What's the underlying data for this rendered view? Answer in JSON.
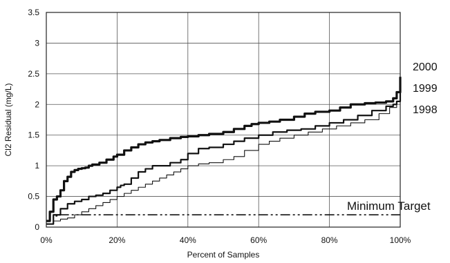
{
  "chart_data": {
    "type": "line",
    "title": "",
    "xlabel": "Percent of Samples",
    "ylabel": "Cl2 Residual (mg/L)",
    "xlim": [
      0,
      100
    ],
    "ylim": [
      0,
      3.5
    ],
    "x_ticks": [
      0,
      20,
      40,
      60,
      80,
      100
    ],
    "x_tick_labels": [
      "0%",
      "20%",
      "40%",
      "60%",
      "80%",
      "100%"
    ],
    "y_ticks": [
      0,
      0.5,
      1,
      1.5,
      2,
      2.5,
      3,
      3.5
    ],
    "y_tick_labels": [
      "0",
      "0.5",
      "1",
      "1.5",
      "2",
      "2.5",
      "3",
      "3.5"
    ],
    "grid": true,
    "series": [
      {
        "name": "2000",
        "color": "#111111",
        "style": "thick",
        "x": [
          0,
          1,
          2,
          3,
          4,
          5,
          6,
          7,
          8,
          9,
          10,
          11,
          12,
          13,
          15,
          17,
          19,
          20,
          22,
          24,
          26,
          28,
          30,
          32,
          35,
          38,
          40,
          43,
          46,
          50,
          53,
          56,
          58,
          60,
          63,
          66,
          70,
          73,
          76,
          80,
          83,
          86,
          90,
          93,
          96,
          98,
          99,
          100
        ],
        "y": [
          0.1,
          0.25,
          0.45,
          0.5,
          0.6,
          0.75,
          0.82,
          0.9,
          0.93,
          0.95,
          0.96,
          0.97,
          1.0,
          1.02,
          1.05,
          1.1,
          1.15,
          1.18,
          1.25,
          1.3,
          1.35,
          1.38,
          1.4,
          1.42,
          1.45,
          1.47,
          1.48,
          1.5,
          1.52,
          1.55,
          1.6,
          1.65,
          1.68,
          1.7,
          1.72,
          1.75,
          1.8,
          1.85,
          1.88,
          1.9,
          1.95,
          2.0,
          2.02,
          2.03,
          2.05,
          2.1,
          2.2,
          2.45
        ]
      },
      {
        "name": "1999",
        "color": "#111111",
        "style": "medium",
        "x": [
          0,
          2,
          4,
          6,
          8,
          10,
          12,
          14,
          16,
          18,
          20,
          21,
          22,
          24,
          26,
          28,
          30,
          32,
          35,
          38,
          40,
          43,
          46,
          50,
          53,
          56,
          60,
          64,
          68,
          72,
          76,
          80,
          84,
          88,
          92,
          96,
          98,
          99,
          100
        ],
        "y": [
          0.05,
          0.2,
          0.3,
          0.38,
          0.42,
          0.45,
          0.5,
          0.52,
          0.55,
          0.6,
          0.65,
          0.68,
          0.7,
          0.8,
          0.9,
          0.95,
          1.0,
          1.0,
          1.05,
          1.1,
          1.2,
          1.28,
          1.3,
          1.35,
          1.4,
          1.45,
          1.5,
          1.55,
          1.58,
          1.6,
          1.65,
          1.7,
          1.75,
          1.82,
          1.9,
          1.97,
          2.0,
          2.05,
          2.3
        ]
      },
      {
        "name": "1998",
        "color": "#111111",
        "style": "thin",
        "x": [
          0,
          2,
          4,
          6,
          8,
          10,
          12,
          14,
          16,
          18,
          20,
          22,
          24,
          26,
          28,
          30,
          32,
          34,
          36,
          38,
          40,
          43,
          46,
          50,
          53,
          56,
          60,
          63,
          66,
          70,
          74,
          78,
          82,
          86,
          90,
          94,
          97,
          99,
          100
        ],
        "y": [
          0.05,
          0.1,
          0.13,
          0.15,
          0.2,
          0.25,
          0.3,
          0.35,
          0.4,
          0.45,
          0.5,
          0.55,
          0.6,
          0.65,
          0.7,
          0.75,
          0.8,
          0.85,
          0.9,
          0.95,
          1.0,
          1.03,
          1.05,
          1.1,
          1.15,
          1.25,
          1.35,
          1.4,
          1.45,
          1.5,
          1.55,
          1.6,
          1.65,
          1.7,
          1.75,
          1.85,
          1.95,
          2.05,
          2.25
        ]
      },
      {
        "name": "Minimum Target",
        "color": "#111111",
        "style": "dash-dot",
        "x": [
          0,
          2,
          3,
          100
        ],
        "y": [
          0.05,
          0.18,
          0.2,
          0.2
        ]
      }
    ],
    "annotations": {
      "series_2000": "2000",
      "series_1999": "1999",
      "series_1998": "1998",
      "minimum_target": "Minimum Target"
    }
  }
}
